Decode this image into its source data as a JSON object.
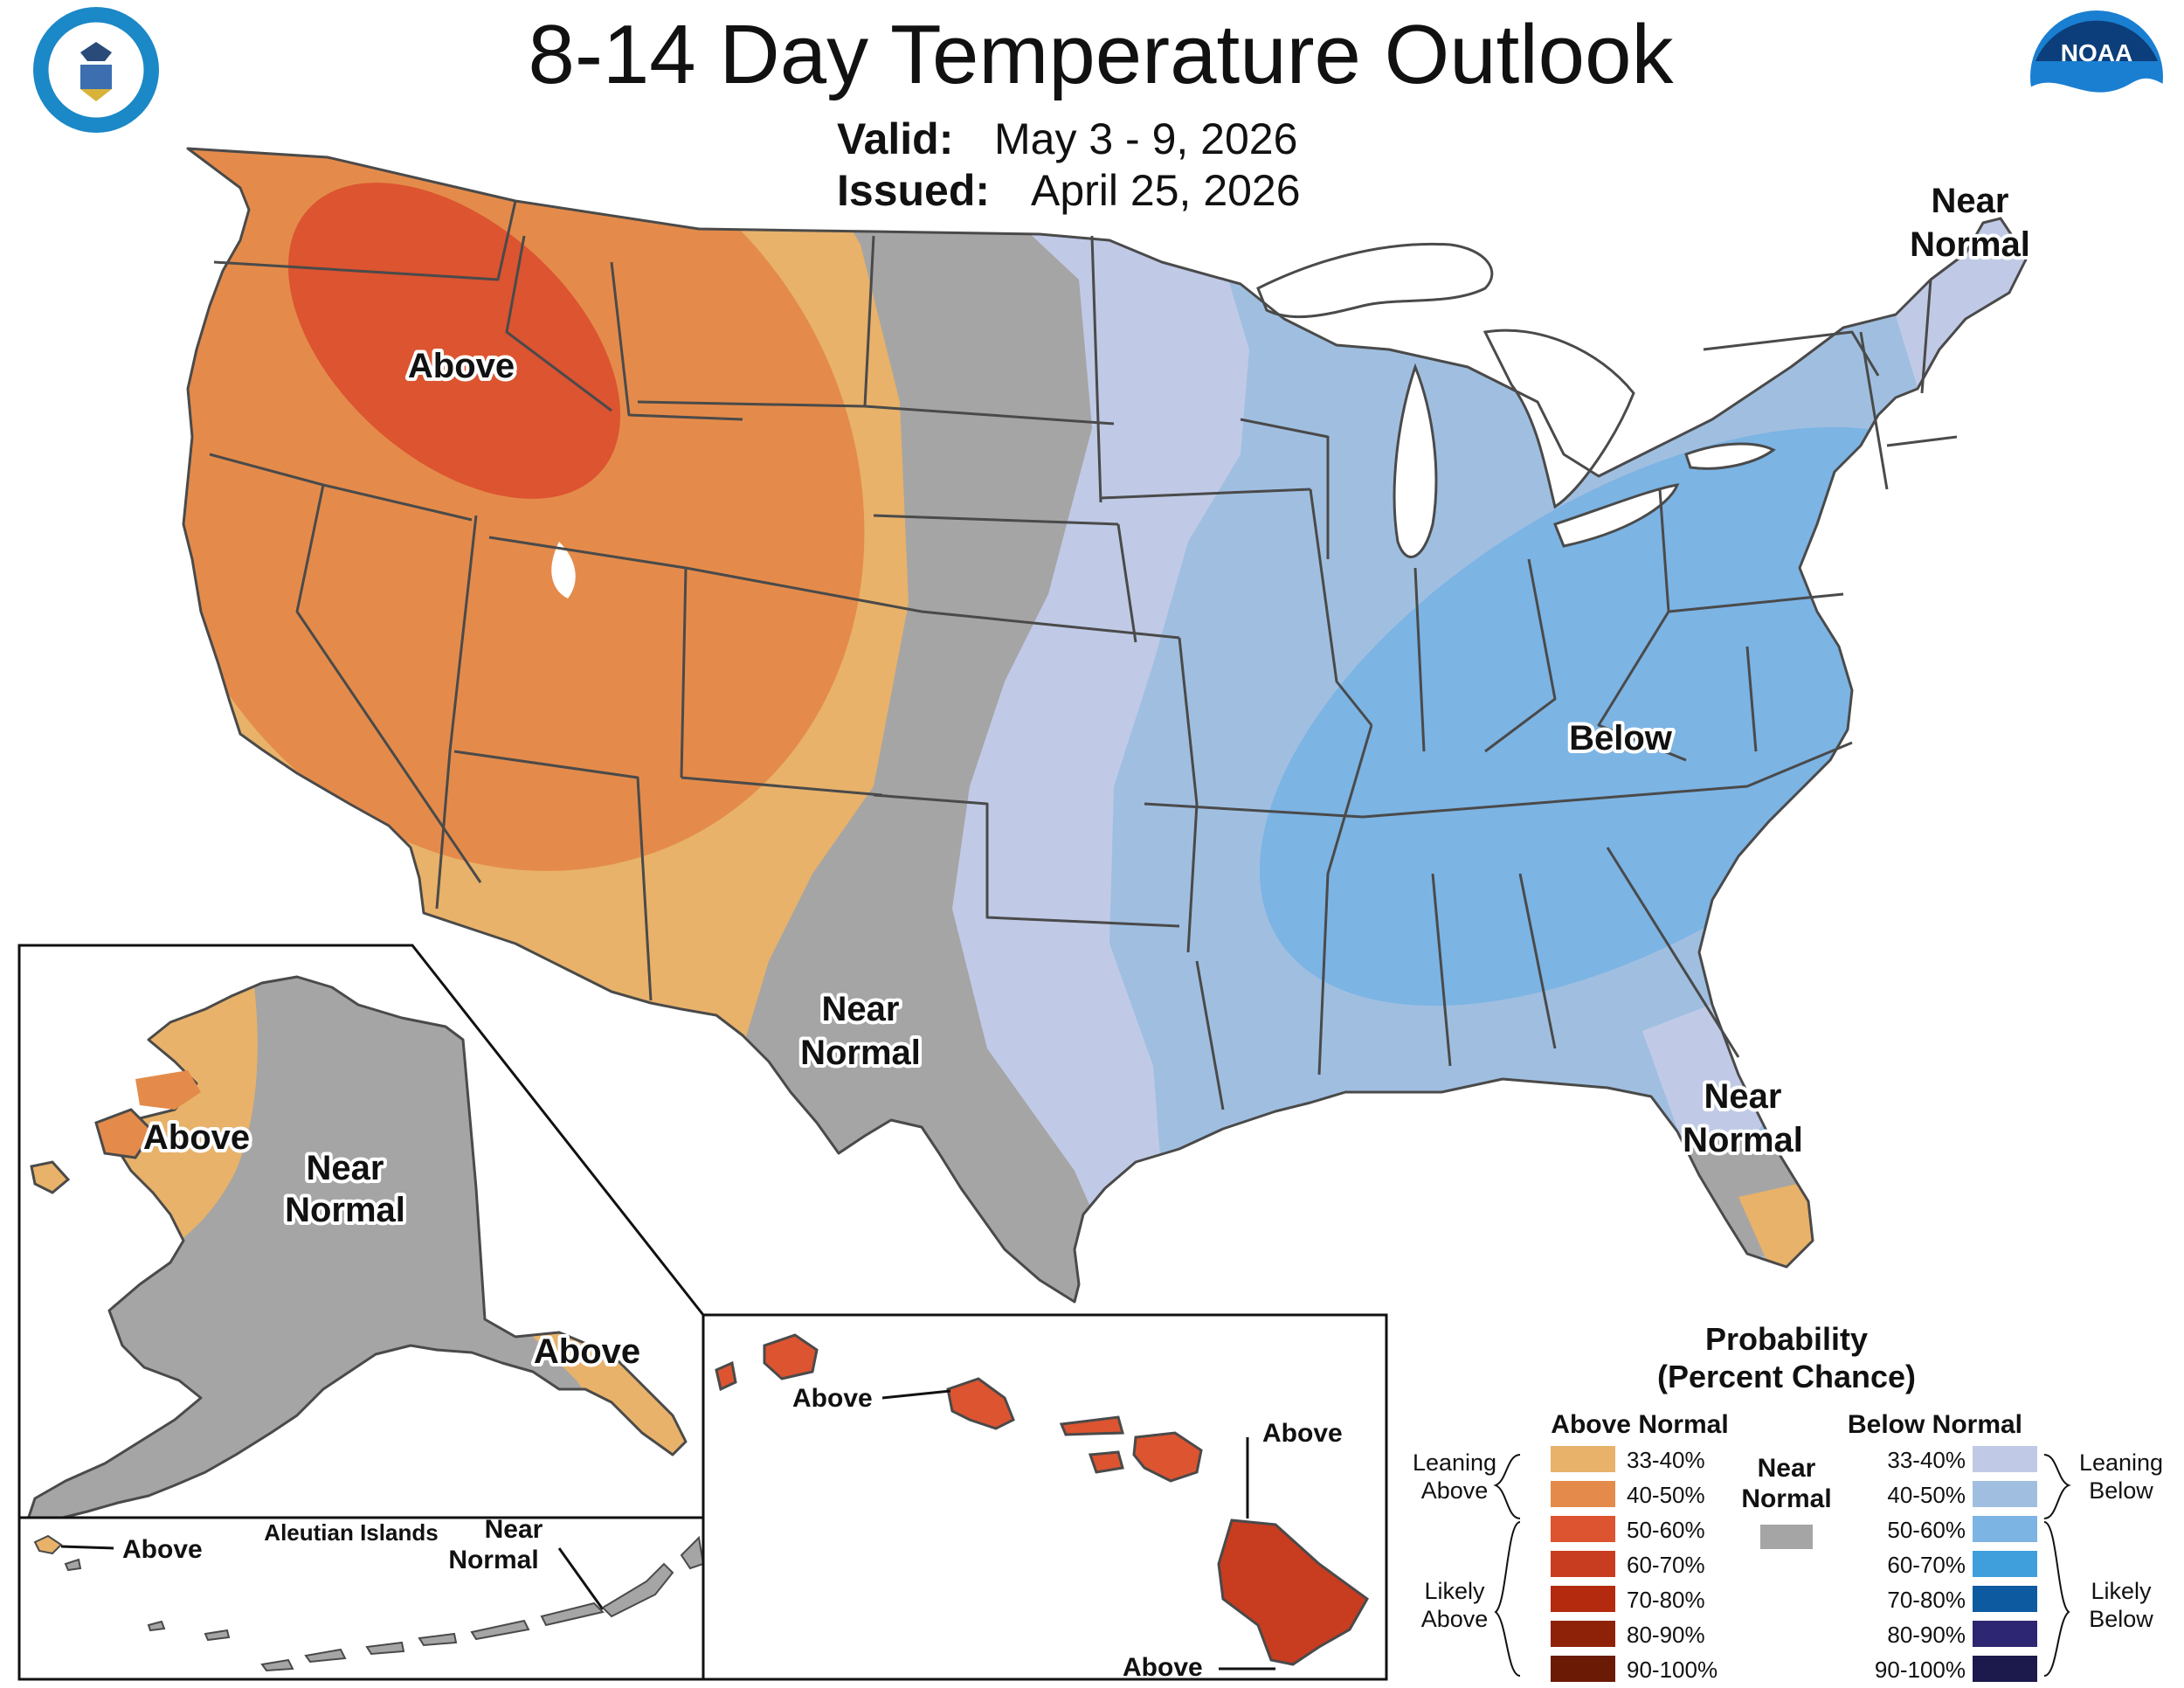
{
  "title": "8-14 Day Temperature Outlook",
  "valid": {
    "label": "Valid:",
    "value": "May 3 - 9, 2026"
  },
  "issued": {
    "label": "Issued:",
    "value": "April 25, 2026"
  },
  "logos": {
    "left": "department-of-commerce-seal",
    "right": "noaa-logo"
  },
  "map_labels": {
    "west_above": "Above",
    "plains_near_1": "Near",
    "plains_near_2": "Normal",
    "southeast_below": "Below",
    "maine_near_1": "Near",
    "maine_near_2": "Normal",
    "florida_near_1": "Near",
    "florida_near_2": "Normal"
  },
  "alaska": {
    "above_west": "Above",
    "near_1": "Near",
    "near_2": "Normal",
    "above_southeast": "Above"
  },
  "aleutians": {
    "title": "Aleutian Islands",
    "above": "Above",
    "near_1": "Near",
    "near_2": "Normal"
  },
  "hawaii": {
    "above_oahu": "Above",
    "above_maui": "Above",
    "above_big_island": "Above"
  },
  "legend": {
    "title_1": "Probability",
    "title_2": "(Percent Chance)",
    "above_header": "Above Normal",
    "below_header": "Below Normal",
    "near_1": "Near",
    "near_2": "Normal",
    "leaning_above_1": "Leaning",
    "leaning_above_2": "Above",
    "likely_above_1": "Likely",
    "likely_above_2": "Above",
    "leaning_below_1": "Leaning",
    "leaning_below_2": "Below",
    "likely_below_1": "Likely",
    "likely_below_2": "Below",
    "above_bins": [
      {
        "label": "33-40%",
        "color": "#e8b26a"
      },
      {
        "label": "40-50%",
        "color": "#e48b4b"
      },
      {
        "label": "50-60%",
        "color": "#dc5430"
      },
      {
        "label": "60-70%",
        "color": "#c83c20"
      },
      {
        "label": "70-80%",
        "color": "#b32a0f"
      },
      {
        "label": "80-90%",
        "color": "#8e2208"
      },
      {
        "label": "90-100%",
        "color": "#6b1a05"
      }
    ],
    "below_bins": [
      {
        "label": "33-40%",
        "color": "#c0cae6"
      },
      {
        "label": "40-50%",
        "color": "#a0bfe0"
      },
      {
        "label": "50-60%",
        "color": "#7cb4e4"
      },
      {
        "label": "60-70%",
        "color": "#3f9fdd"
      },
      {
        "label": "70-80%",
        "color": "#0e5aa0"
      },
      {
        "label": "80-90%",
        "color": "#2d2672"
      },
      {
        "label": "90-100%",
        "color": "#1c1a4c"
      }
    ],
    "near_color": "#a5a5a5"
  }
}
